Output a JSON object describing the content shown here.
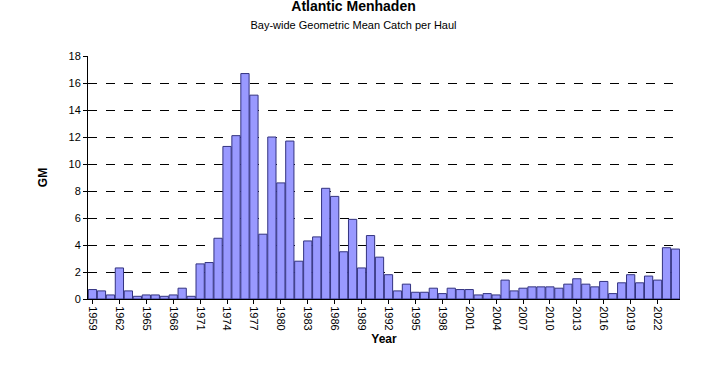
{
  "chart_data": {
    "type": "bar",
    "title": "Atlantic Menhaden",
    "subtitle": "Bay-wide Geometric Mean Catch per Haul",
    "x_label": "Year",
    "y_label": "GM",
    "categories": [
      "1959",
      null,
      null,
      "1962",
      null,
      null,
      "1965",
      null,
      null,
      "1968",
      null,
      null,
      "1971",
      null,
      null,
      "1974",
      null,
      null,
      "1977",
      null,
      null,
      "1980",
      null,
      null,
      "1983",
      null,
      null,
      "1986",
      null,
      null,
      "1989",
      null,
      null,
      "1992",
      null,
      null,
      "1995",
      null,
      null,
      "1998",
      null,
      null,
      "2001",
      null,
      null,
      "2004",
      null,
      null,
      "2007",
      null,
      null,
      "2010",
      null,
      null,
      "2013",
      null,
      null,
      "2016",
      null,
      null,
      "2019",
      null,
      null,
      "2022",
      null,
      null
    ],
    "values": [
      0.7,
      0.6,
      0.3,
      2.3,
      0.6,
      0.2,
      0.3,
      0.3,
      0.2,
      0.3,
      0.8,
      0.2,
      2.6,
      2.7,
      4.5,
      11.3,
      12.1,
      16.7,
      15.1,
      4.8,
      12.0,
      8.6,
      11.7,
      2.8,
      4.3,
      4.6,
      8.2,
      7.6,
      3.5,
      5.9,
      2.3,
      4.7,
      3.1,
      1.8,
      0.6,
      1.1,
      0.5,
      0.5,
      0.8,
      0.4,
      0.8,
      0.7,
      0.7,
      0.3,
      0.4,
      0.3,
      1.4,
      0.6,
      0.8,
      0.9,
      0.9,
      0.9,
      0.8,
      1.1,
      1.5,
      1.1,
      0.9,
      1.3,
      0.4,
      1.2,
      1.8,
      1.2,
      1.7,
      1.4,
      3.8,
      3.7
    ],
    "color": "#9999ff",
    "ylim": [
      0,
      18
    ],
    "yticks": [
      0,
      2,
      4,
      6,
      8,
      10,
      12,
      14,
      16,
      18
    ],
    "grid": true
  }
}
